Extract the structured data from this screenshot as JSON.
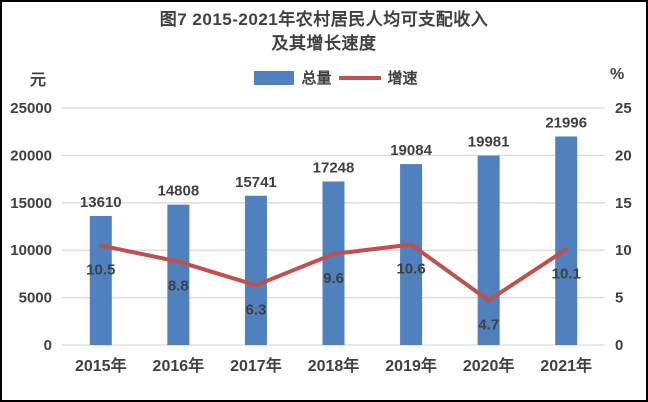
{
  "figure": {
    "title_line1": "图7  2015-2021年农村居民人均可支配收入",
    "title_line2": "及其增长速度",
    "left_axis_unit": "元",
    "right_axis_unit": "%",
    "legend": [
      {
        "label": "总量",
        "type": "bar",
        "color": "#4E81BD"
      },
      {
        "label": "增速",
        "type": "line",
        "color": "#C0504D"
      }
    ]
  },
  "chart_data": {
    "type": "bar+line combo",
    "title": "图7 2015-2021年农村居民人均可支配收入及其增长速度",
    "categories": [
      "2015年",
      "2016年",
      "2017年",
      "2018年",
      "2019年",
      "2020年",
      "2021年"
    ],
    "series": [
      {
        "name": "总量",
        "type": "bar",
        "axis": "left",
        "color": "#4E81BD",
        "values": [
          13610,
          14808,
          15741,
          17248,
          19084,
          19981,
          21996
        ]
      },
      {
        "name": "增速",
        "type": "line",
        "axis": "right",
        "color": "#C0504D",
        "values": [
          10.5,
          8.8,
          6.3,
          9.6,
          10.6,
          4.7,
          10.1
        ]
      }
    ],
    "left_axis": {
      "unit": "元",
      "min": 0,
      "max": 25000,
      "step": 5000,
      "ticks": [
        0,
        5000,
        10000,
        15000,
        20000,
        25000
      ]
    },
    "right_axis": {
      "unit": "%",
      "min": 0,
      "max": 25,
      "step": 5,
      "ticks": [
        0,
        5,
        10,
        15,
        20,
        25
      ]
    },
    "grid": true,
    "legend_position": "top-center",
    "colors": {
      "gridline": "#D9D9D9",
      "text": "#404040",
      "bar": "#4E81BD",
      "line": "#C0504D"
    }
  }
}
